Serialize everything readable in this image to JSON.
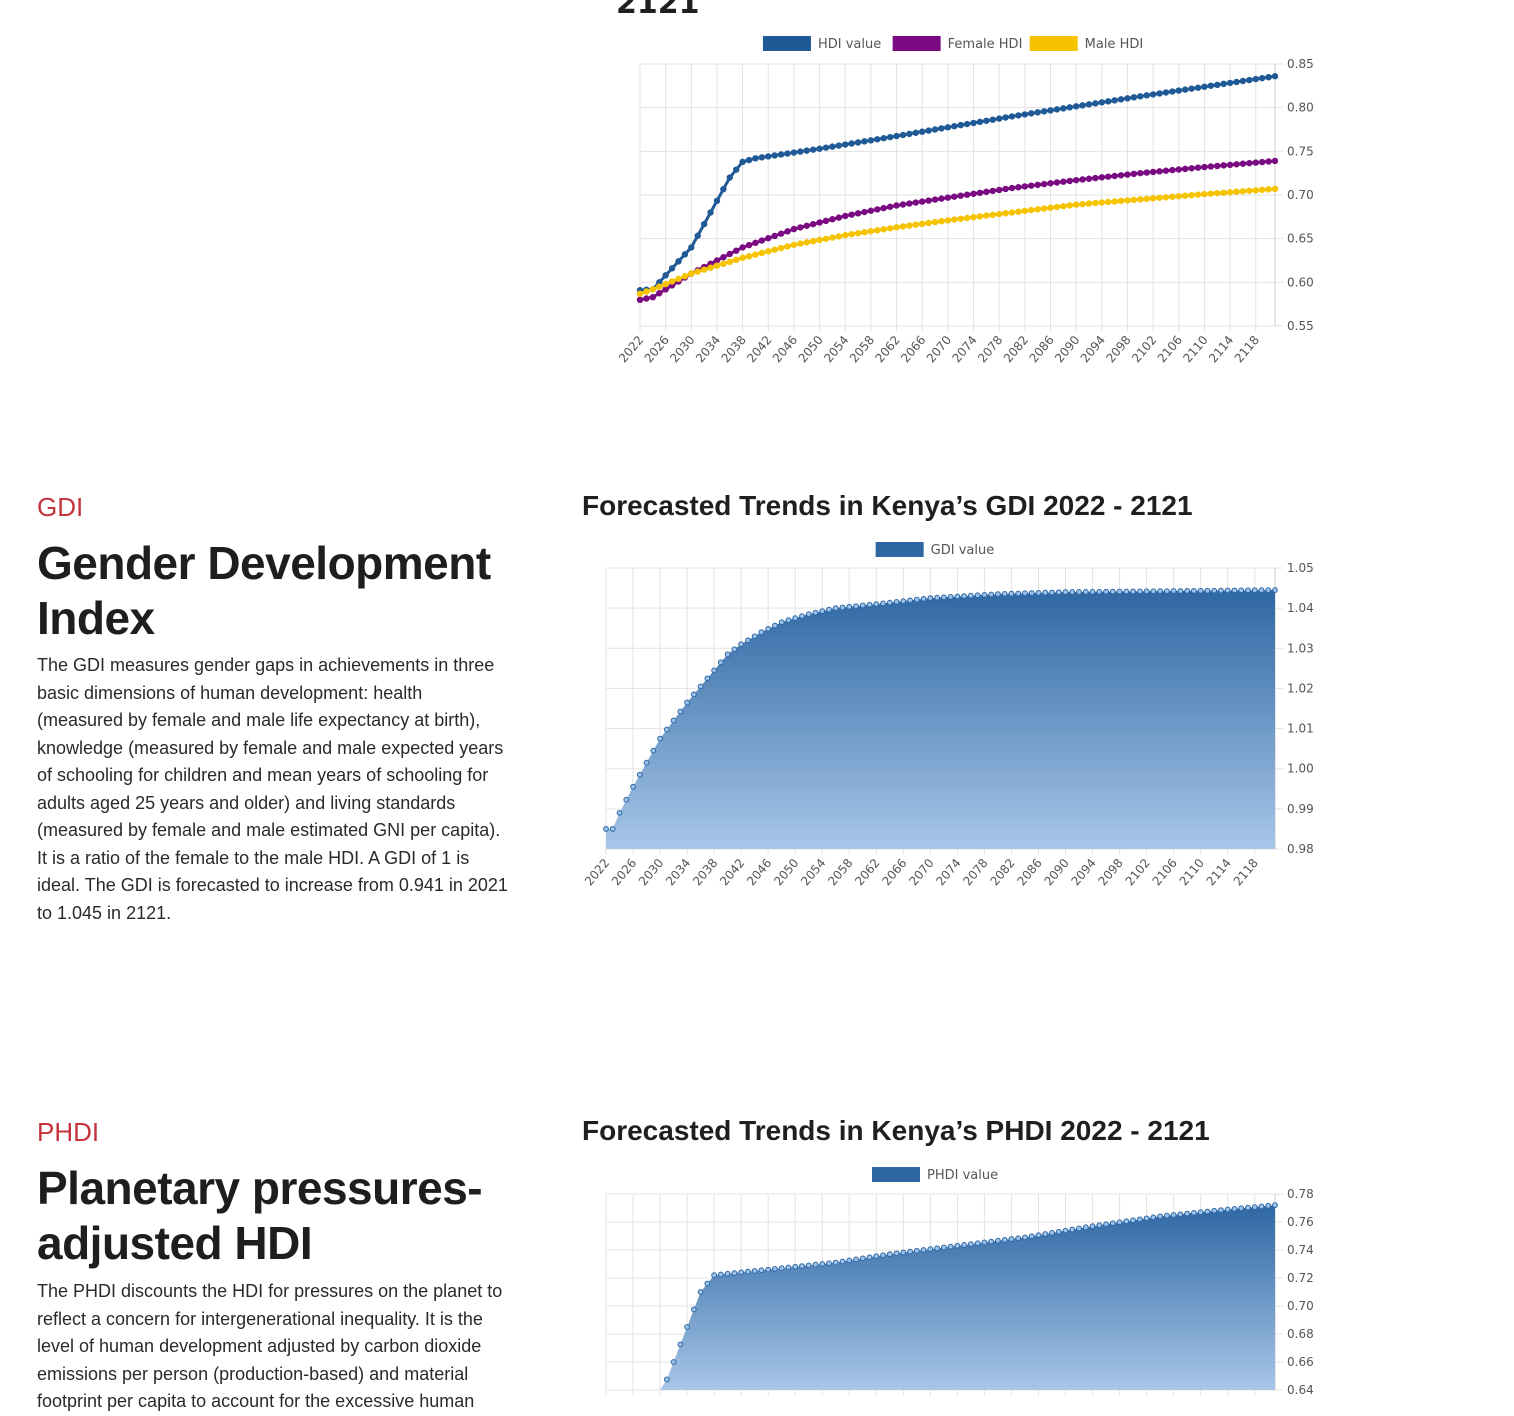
{
  "top_section": {
    "left_text_fragment": "...",
    "chart_title_fragment": "2121"
  },
  "gdi_section": {
    "kicker": "GDI",
    "title_line1": "Gender Development",
    "title_line2": "Index",
    "paragraph_lines": [
      "The GDI measures gender gaps in achievements in three",
      "basic dimensions of human development: health",
      "(measured by female and male life expectancy at birth),",
      "knowledge (measured by female and male expected years",
      "of schooling for children and mean years of schooling for",
      "adults aged 25 years and older) and living standards",
      "(measured by female and male estimated GNI per capita).",
      "It is a ratio of the female to the male HDI. A GDI of 1 is",
      "ideal. The GDI is forecasted to increase from 0.941 in 2021",
      "to 1.045 in 2121."
    ],
    "chart_title": "Forecasted Trends in Kenya’s GDI 2022 - 2121"
  },
  "phdi_section": {
    "kicker": "PHDI",
    "title_line1": "Planetary pressures-",
    "title_line2": "adjusted HDI",
    "paragraph_lines": [
      "The PHDI discounts the HDI for pressures on the planet to",
      "reflect a concern for intergenerational inequality. It is the",
      "level of human development adjusted by carbon dioxide",
      "emissions per person (production-based) and material",
      "footprint per capita to account for the excessive human"
    ],
    "chart_title": "Forecasted Trends in Kenya’s PHDI 2022 - 2121"
  },
  "colors": {
    "hdi": "#1f5a96",
    "female": "#7a0a82",
    "male": "#f5c300",
    "area_dark": "#2e67a3",
    "area_light": "#a8c6e8",
    "grid": "#e3e3e3",
    "accent": "#c5333d"
  },
  "chart_data": [
    {
      "type": "line",
      "title": "",
      "x": [
        2022,
        2121
      ],
      "xticks": [
        "2022",
        "2026",
        "2030",
        "2034",
        "2038",
        "2042",
        "2046",
        "2050",
        "2054",
        "2058",
        "2062",
        "2066",
        "2070",
        "2074",
        "2078",
        "2082",
        "2086",
        "2090",
        "2094",
        "2098",
        "2102",
        "2106",
        "2110",
        "2114",
        "2118"
      ],
      "ylim": [
        0.55,
        0.85
      ],
      "yticks": [
        "0.55",
        "0.60",
        "0.65",
        "0.70",
        "0.75",
        "0.80",
        "0.85"
      ],
      "legend": "top",
      "grid": true,
      "series": [
        {
          "name": "HDI value",
          "keypoints": [
            [
              2022,
              0.591
            ],
            [
              2024,
              0.592
            ],
            [
              2030,
              0.64
            ],
            [
              2036,
              0.72
            ],
            [
              2038,
              0.738
            ],
            [
              2040,
              0.742
            ],
            [
              2050,
              0.753
            ],
            [
              2060,
              0.765
            ],
            [
              2080,
              0.79
            ],
            [
              2100,
              0.813
            ],
            [
              2121,
              0.836
            ]
          ]
        },
        {
          "name": "Female HDI",
          "keypoints": [
            [
              2022,
              0.58
            ],
            [
              2024,
              0.583
            ],
            [
              2030,
              0.61
            ],
            [
              2038,
              0.64
            ],
            [
              2046,
              0.661
            ],
            [
              2054,
              0.676
            ],
            [
              2062,
              0.688
            ],
            [
              2070,
              0.697
            ],
            [
              2080,
              0.708
            ],
            [
              2090,
              0.717
            ],
            [
              2100,
              0.725
            ],
            [
              2110,
              0.732
            ],
            [
              2121,
              0.739
            ]
          ]
        },
        {
          "name": "Male HDI",
          "keypoints": [
            [
              2022,
              0.587
            ],
            [
              2024,
              0.592
            ],
            [
              2030,
              0.61
            ],
            [
              2038,
              0.628
            ],
            [
              2046,
              0.643
            ],
            [
              2054,
              0.654
            ],
            [
              2062,
              0.663
            ],
            [
              2070,
              0.671
            ],
            [
              2080,
              0.68
            ],
            [
              2090,
              0.689
            ],
            [
              2100,
              0.695
            ],
            [
              2110,
              0.701
            ],
            [
              2121,
              0.707
            ]
          ]
        }
      ]
    },
    {
      "type": "area",
      "title": "Forecasted Trends in Kenya’s GDI 2022 - 2121",
      "x": [
        2022,
        2121
      ],
      "xticks": [
        "2022",
        "2026",
        "2030",
        "2034",
        "2038",
        "2042",
        "2046",
        "2050",
        "2054",
        "2058",
        "2062",
        "2066",
        "2070",
        "2074",
        "2078",
        "2082",
        "2086",
        "2090",
        "2094",
        "2098",
        "2102",
        "2106",
        "2110",
        "2114",
        "2118"
      ],
      "ylim": [
        0.98,
        1.05
      ],
      "yticks": [
        "0.98",
        "0.99",
        "1.00",
        "1.01",
        "1.02",
        "1.03",
        "1.04",
        "1.05"
      ],
      "legend": "top",
      "grid": true,
      "series": [
        {
          "name": "GDI value",
          "keypoints": [
            [
              2022,
              0.985
            ],
            [
              2023,
              0.985
            ],
            [
              2024,
              0.989
            ],
            [
              2026,
              0.9955
            ],
            [
              2028,
              1.0015
            ],
            [
              2030,
              1.0075
            ],
            [
              2032,
              1.012
            ],
            [
              2034,
              1.0165
            ],
            [
              2036,
              1.0205
            ],
            [
              2038,
              1.0245
            ],
            [
              2040,
              1.0285
            ],
            [
              2042,
              1.031
            ],
            [
              2045,
              1.034
            ],
            [
              2048,
              1.0365
            ],
            [
              2052,
              1.0385
            ],
            [
              2056,
              1.04
            ],
            [
              2062,
              1.041
            ],
            [
              2070,
              1.0425
            ],
            [
              2080,
              1.0435
            ],
            [
              2090,
              1.044
            ],
            [
              2121,
              1.0445
            ]
          ]
        }
      ]
    },
    {
      "type": "area",
      "title": "Forecasted Trends in Kenya’s PHDI 2022 - 2121",
      "x": [
        2022,
        2121
      ],
      "xticks": [],
      "ylim": [
        0.64,
        0.78
      ],
      "yticks": [
        "0.64",
        "0.66",
        "0.68",
        "0.70",
        "0.72",
        "0.74",
        "0.76",
        "0.78"
      ],
      "legend": "top",
      "grid": true,
      "series": [
        {
          "name": "PHDI value",
          "keypoints": [
            [
              2022,
              0.58
            ],
            [
              2030,
              0.635
            ],
            [
              2036,
              0.71
            ],
            [
              2038,
              0.722
            ],
            [
              2046,
              0.726
            ],
            [
              2056,
              0.731
            ],
            [
              2064,
              0.737
            ],
            [
              2074,
              0.743
            ],
            [
              2084,
              0.749
            ],
            [
              2094,
              0.757
            ],
            [
              2104,
              0.764
            ],
            [
              2112,
              0.768
            ],
            [
              2121,
              0.772
            ]
          ]
        }
      ]
    }
  ]
}
